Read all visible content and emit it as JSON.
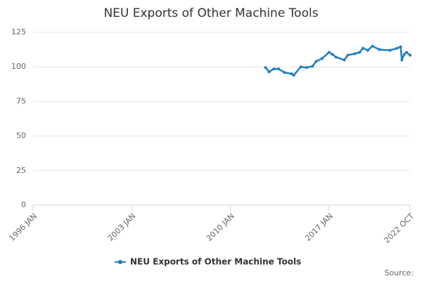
{
  "chart_data": {
    "type": "line",
    "title": "NEU Exports of Other Machine Tools",
    "x": [
      "2012-07",
      "2012-10",
      "2013-02",
      "2013-06",
      "2013-11",
      "2014-05",
      "2014-07",
      "2015-01",
      "2015-06",
      "2015-11",
      "2016-02",
      "2016-07",
      "2017-01",
      "2017-04",
      "2017-07",
      "2018-02",
      "2018-05",
      "2018-11",
      "2019-03",
      "2019-06",
      "2019-10",
      "2020-02",
      "2020-08",
      "2021-05",
      "2021-11",
      "2022-02",
      "2022-03",
      "2022-05",
      "2022-07",
      "2022-10"
    ],
    "series": [
      {
        "name": "NEU Exports of Other Machine Tools",
        "color": "#1f7fc1",
        "values": [
          99.5,
          96.5,
          98.5,
          98.5,
          96,
          95,
          94,
          100,
          99.5,
          100.5,
          104,
          106,
          110.5,
          109,
          107,
          105,
          108.5,
          109.5,
          110.5,
          113.5,
          112,
          115,
          112.5,
          112,
          113.5,
          114.5,
          105,
          109,
          110.5,
          108.5
        ]
      }
    ],
    "xlim": [
      "1996-01",
      "2022-10"
    ],
    "xticks": [
      {
        "value": "1996-01",
        "label": "1996 JAN"
      },
      {
        "value": "2003-01",
        "label": "2003 JAN"
      },
      {
        "value": "2010-01",
        "label": "2010 JAN"
      },
      {
        "value": "2017-01",
        "label": "2017 JAN"
      },
      {
        "value": "2022-10",
        "label": "2022 OCT"
      }
    ],
    "ylim": [
      0,
      125
    ],
    "yticks": [
      0,
      25,
      50,
      75,
      100,
      125
    ],
    "grid": true,
    "source": "Source:"
  }
}
